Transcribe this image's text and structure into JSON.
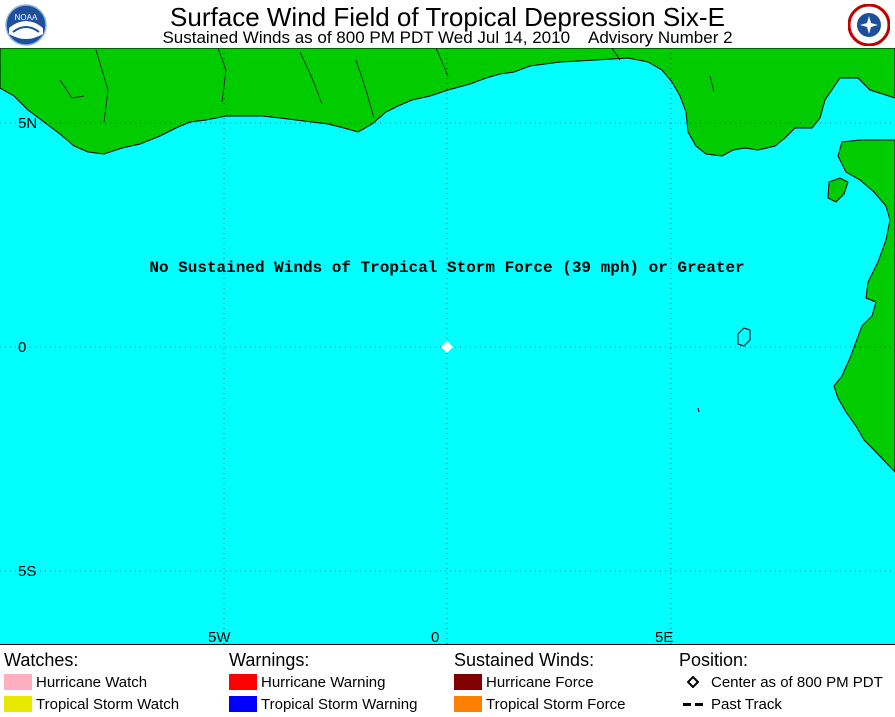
{
  "header": {
    "title": "Surface Wind Field of Tropical Depression Six-E",
    "subtitle": "Sustained Winds as of 800 PM PDT Wed Jul 14, 2010    Advisory Number 2",
    "logo_left": "NOAA",
    "logo_right": "NATIONAL WEATHER SERVICE"
  },
  "map": {
    "message": "No Sustained Winds of Tropical Storm Force (39 mph) or Greater",
    "lat_labels": [
      "5N",
      "0",
      "5S"
    ],
    "lon_labels": [
      "5W",
      "0",
      "5E"
    ],
    "colors": {
      "ocean": "#00ffff",
      "land": "#00cc00",
      "coast": "#000000",
      "center": "#ffffff"
    }
  },
  "legend": {
    "watches": {
      "heading": "Watches:",
      "items": [
        {
          "label": "Hurricane Watch",
          "color": "#ffb0c0"
        },
        {
          "label": "Tropical Storm Watch",
          "color": "#e8e800"
        }
      ]
    },
    "warnings": {
      "heading": "Warnings:",
      "items": [
        {
          "label": "Hurricane Warning",
          "color": "#ff0000"
        },
        {
          "label": "Tropical Storm Warning",
          "color": "#0000ff"
        }
      ]
    },
    "winds": {
      "heading": "Sustained Winds:",
      "items": [
        {
          "label": "Hurricane Force",
          "color": "#800000"
        },
        {
          "label": "Tropical Storm Force",
          "color": "#ff8000"
        }
      ]
    },
    "position": {
      "heading": "Position:",
      "items": [
        {
          "label": "Center as of 800 PM PDT",
          "icon": "diamond-icon"
        },
        {
          "label": "Past Track",
          "icon": "dashed-line-icon"
        }
      ]
    }
  }
}
